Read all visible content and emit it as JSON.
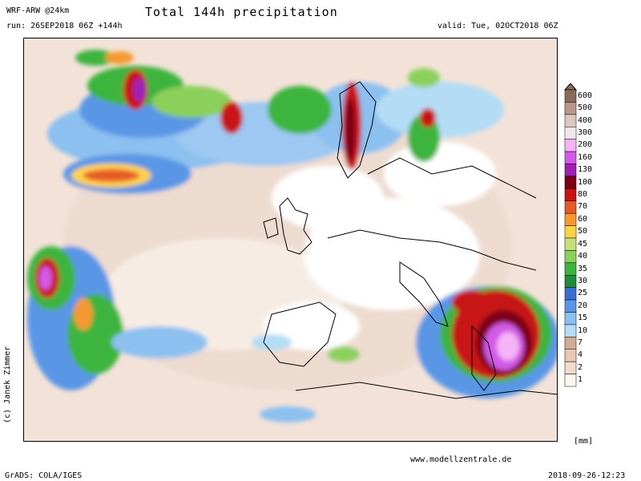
{
  "header": {
    "model": "WRF-ARW @24km",
    "title": "Total 144h precipitation",
    "run": "run: 26SEP2018 06Z +144h",
    "valid": "valid: Tue, 02OCT2018 06Z"
  },
  "footer": {
    "credit_left": "GrADS: COLA/IGES",
    "website": "www.modellzentrale.de",
    "timestamp": "2018-09-26-12:23",
    "copyright": "(c) Janek Zimmer"
  },
  "colorbar": {
    "unit": "[mm]",
    "levels": [
      "600",
      "500",
      "400",
      "300",
      "200",
      "160",
      "130",
      "100",
      "80",
      "70",
      "60",
      "50",
      "45",
      "40",
      "35",
      "30",
      "25",
      "20",
      "15",
      "10",
      "7",
      "4",
      "2",
      "1"
    ],
    "colors": [
      "#8b6a5e",
      "#b8968a",
      "#dcc6bf",
      "#f2e8ec",
      "#f5b4f5",
      "#d25ae6",
      "#a020b4",
      "#7a0014",
      "#c81414",
      "#e65a28",
      "#f59a32",
      "#ffd24a",
      "#c8e07a",
      "#8ad05a",
      "#3cb43c",
      "#1e8c3c",
      "#3c6ed2",
      "#5a96e6",
      "#8cc0f0",
      "#b4dcf5",
      "#d2aa96",
      "#e6c8b4",
      "#f0dccd",
      "#fff7f0"
    ]
  }
}
